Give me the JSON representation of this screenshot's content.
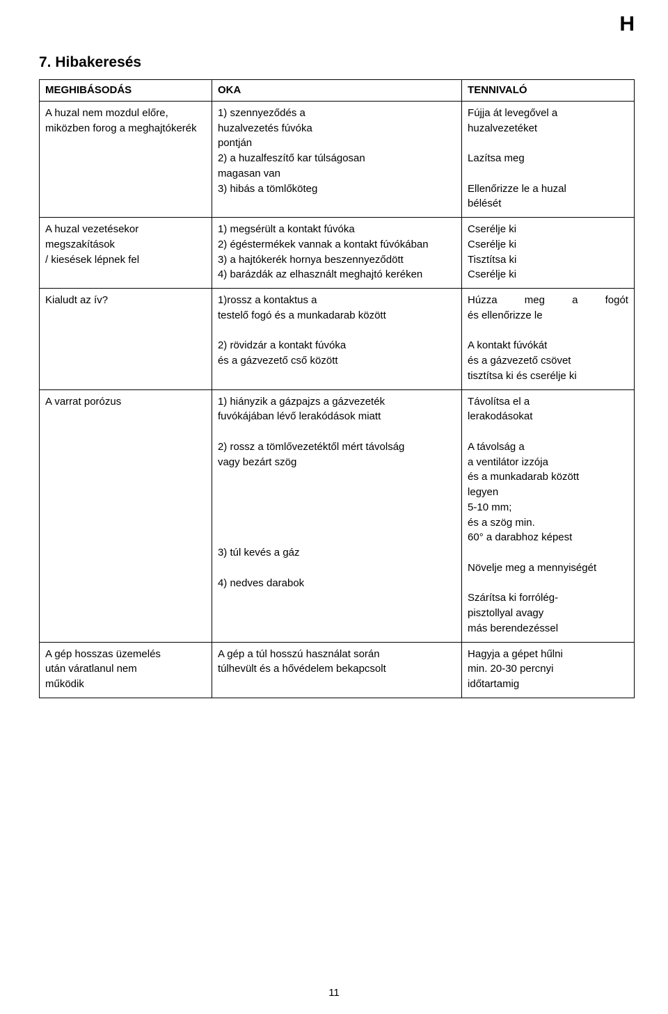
{
  "corner": "H",
  "sectionTitle": "7.  Hibakeresés",
  "headers": {
    "c1": "MEGHIBÁSODÁS",
    "c2": "OKA",
    "c3": "TENNIVALÓ"
  },
  "row1": {
    "m1": "A huzal nem mozdul előre,",
    "m2": "miközben forog a meghajtókerék",
    "o1": "1) szennyeződés a",
    "o2": "  huzalvezetés fúvóka",
    "o3": "  pontján",
    "o4": "2) a huzalfeszítő kar túlságosan",
    "o5": "  magasan van",
    "o6": "3) hibás a tömlőköteg",
    "t1": "Fújja át levegővel a",
    "t2": "huzalvezetéket",
    "t4": "Lazítsa meg",
    "t6a": "Ellenőrizze le a huzal",
    "t6b": "bélését"
  },
  "row2": {
    "m1": "A huzal vezetésekor  megszakítások",
    "m2": "/ kiesések  lépnek fel",
    "o1": "1) megsérült a kontakt fúvóka",
    "o2": "2) égéstermékek vannak a kontakt fúvókában",
    "o3": "3) a hajtókerék hornya beszennyeződött",
    "o4": "4) barázdák az elhasznált meghajtó keréken",
    "t1": "Cserélje ki",
    "t2": "Cserélje ki",
    "t3": "Tisztítsa ki",
    "t4": "Cserélje ki"
  },
  "row3": {
    "m1": "Kialudt  az  ív?",
    "o1": "1)rossz a kontaktus a",
    "o1b": "testelő fogó és a munkadarab között",
    "o2": "2) rövidzár  a kontakt fúvóka",
    "o2b": "és a gázvezető cső között",
    "t1_left": "Húzza",
    "t1_mid": "meg",
    "t1_right1": "a",
    "t1_right2": "fogót",
    "t1b": "és ellenőrizze le",
    "t2": "A kontakt  fúvókát",
    "t2b": "és a gázvezető csövet",
    "t2c": "tisztítsa ki és cserélje ki"
  },
  "row4": {
    "m1": "A  varrat porózus",
    "o1": "1) hiányzik a gázpajzs  a gázvezeték",
    "o1b": "fuvókájában lévő lerakódások miatt",
    "o2": "2) rossz a tömlővezetéktől mért  távolság",
    "o2b": "  vagy bezárt szög",
    "o3": "3) túl kevés a gáz",
    "o4": "4) nedves darabok",
    "t1": "Távolítsa el a",
    "t1b": "lerakodásokat",
    "t2a": "A távolság a",
    "t2b": "a ventilátor izzója",
    "t2c": "és a munkadarab között",
    "t2d": "legyen",
    "t2e": "5-10 mm;",
    "t2f": "és a szög min.",
    "t2g": "60° a darabhoz képest",
    "t3": "Növelje meg a mennyiségét",
    "t4a": "Szárítsa ki forrólég-",
    "t4b": "pisztollyal avagy",
    "t4c": "más berendezéssel"
  },
  "row5": {
    "m1": "A gép hosszas üzemelés",
    "m2": "után váratlanul nem",
    "m3": "működik",
    "o1": "A gép a túl hosszú használat során",
    "o2": "túlhevült és a hővédelem bekapcsolt",
    "t1": "Hagyja a gépet hűlni",
    "t2": "min. 20-30 percnyi",
    "t3": "időtartamig"
  },
  "pageNumber": "11"
}
